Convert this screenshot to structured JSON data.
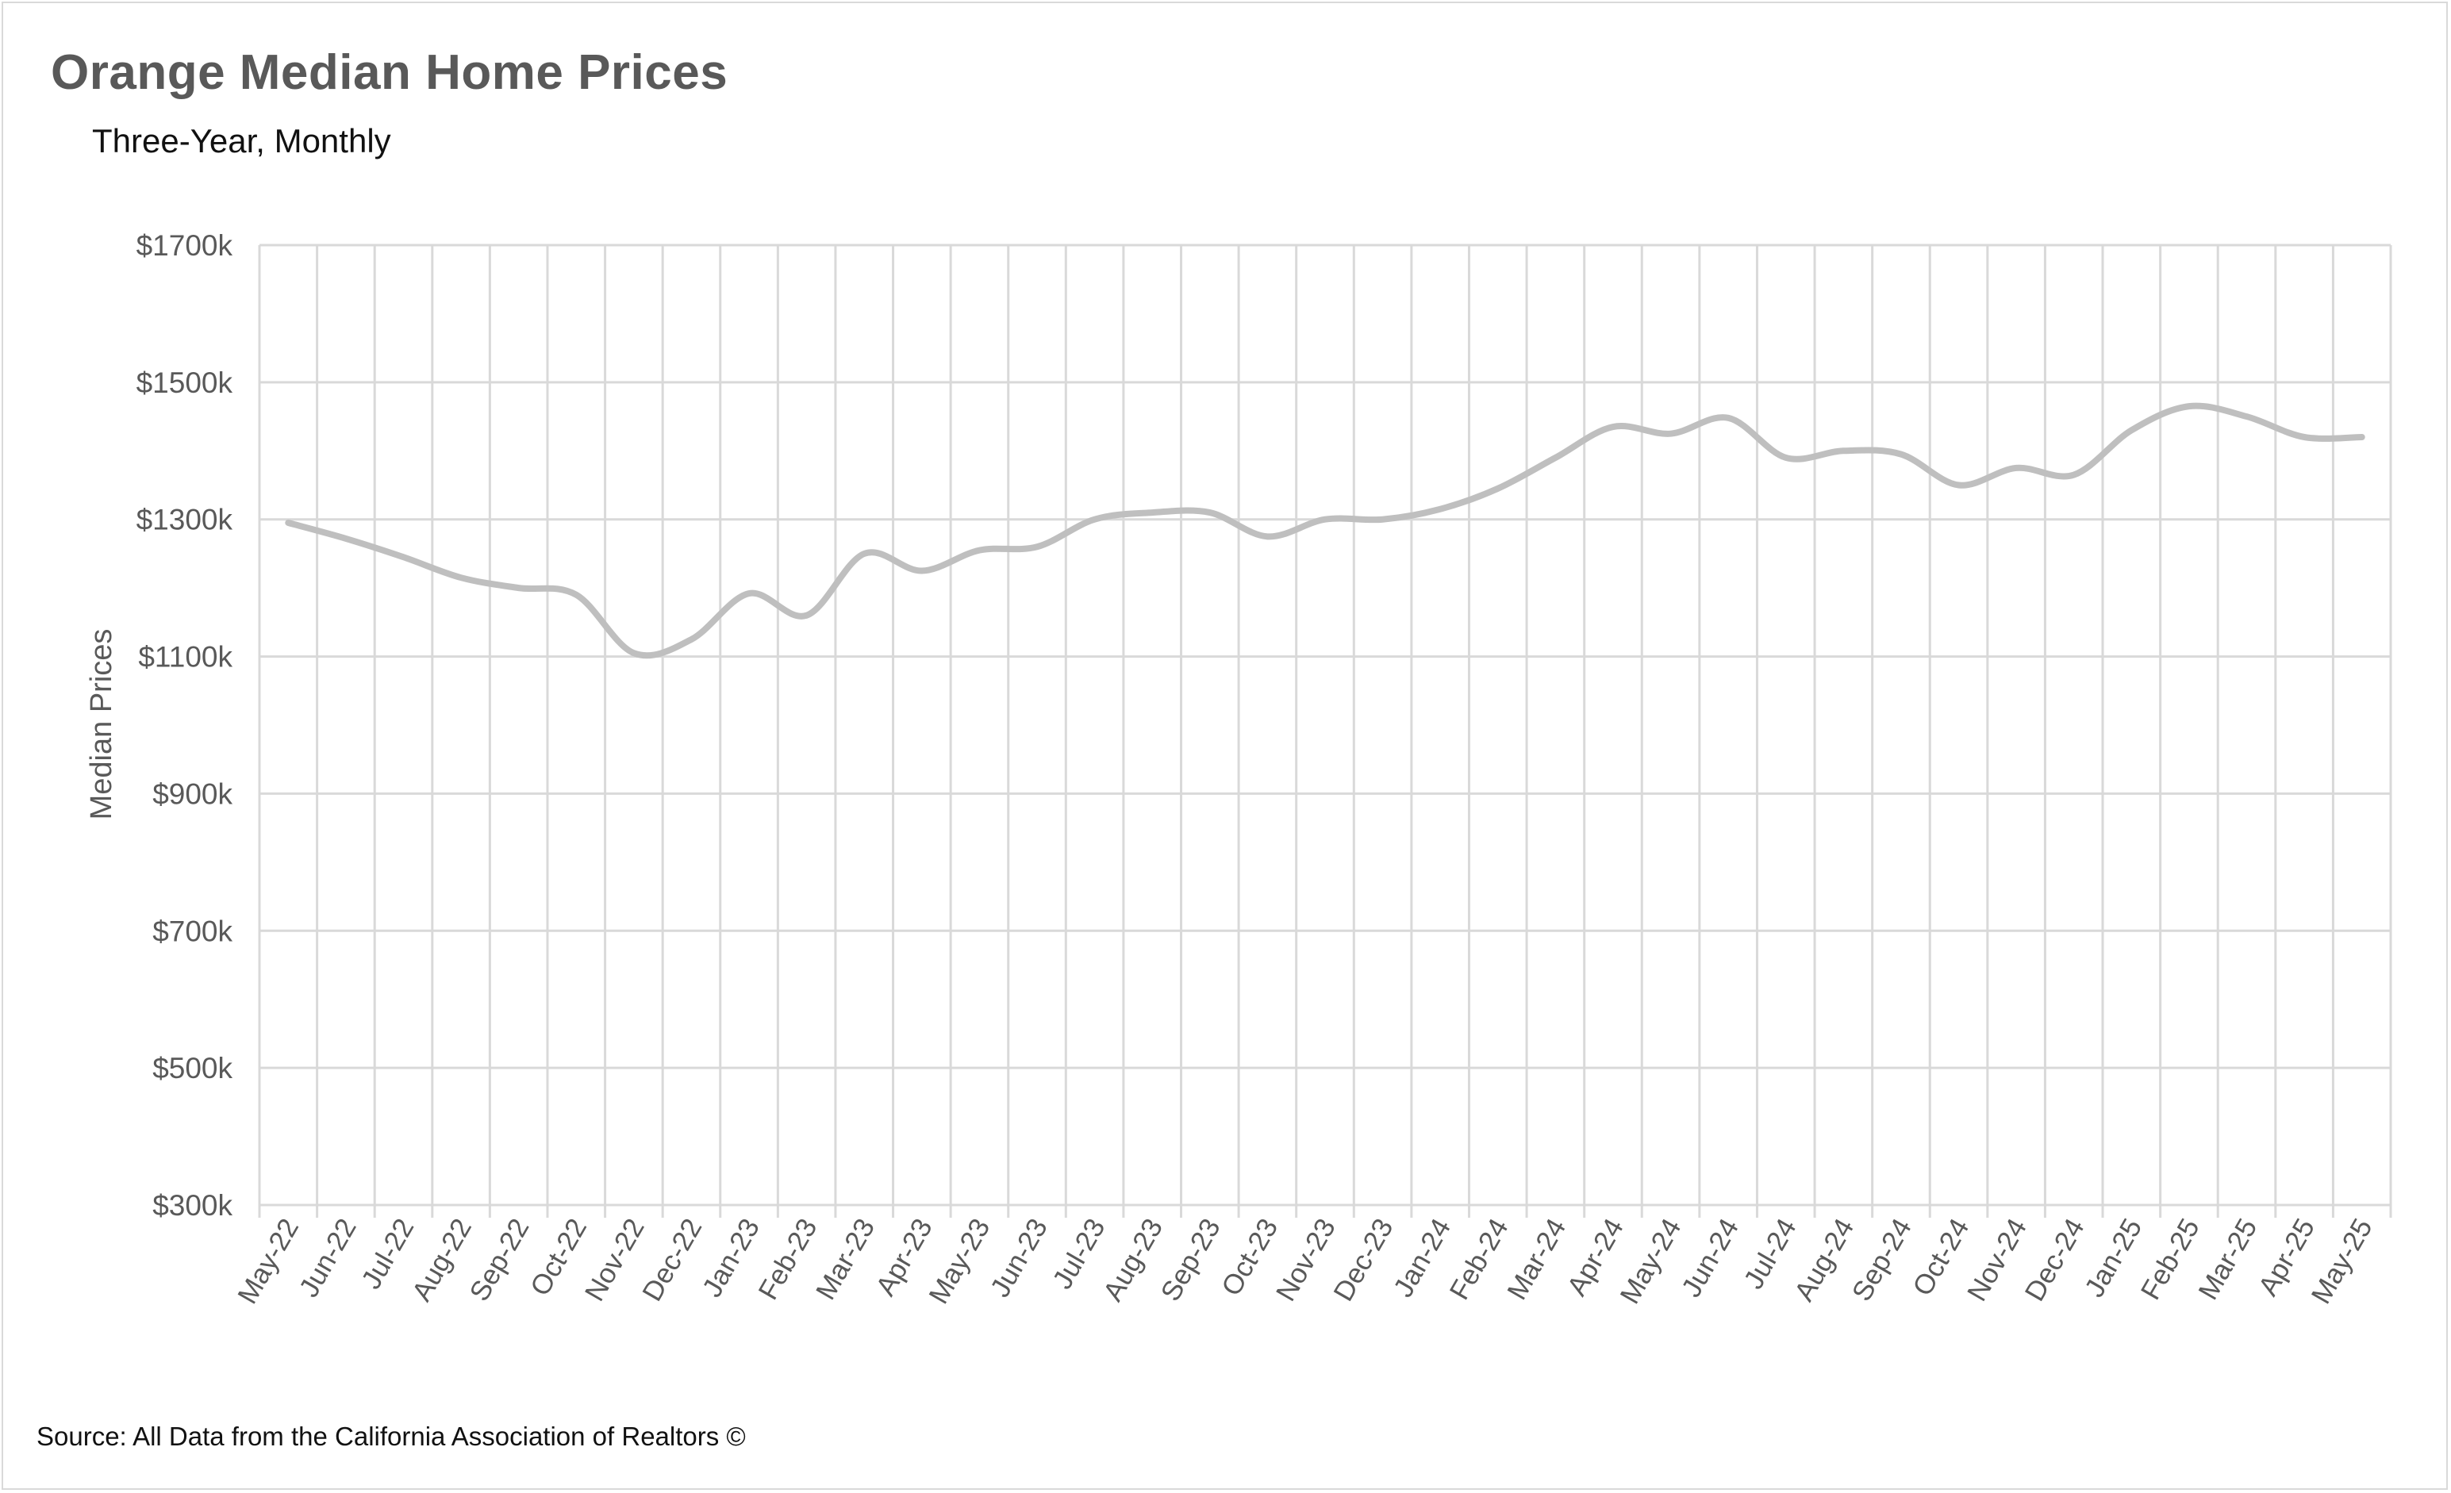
{
  "title": "Orange Median Home Prices",
  "subtitle": "Three-Year, Monthly",
  "footer": "Source: All Data from the California Association of Realtors ©",
  "colors": {
    "line": "#bfbfbf",
    "grid": "#d9d9d9",
    "text": "#595959"
  },
  "chart_data": {
    "type": "line",
    "title": "Orange Median Home Prices",
    "subtitle": "Three-Year, Monthly",
    "xlabel": "",
    "ylabel": "Median Prices",
    "ylim": [
      300,
      1700
    ],
    "y_ticks": [
      300,
      500,
      700,
      900,
      1100,
      1300,
      1500,
      1700
    ],
    "y_tick_labels": [
      "$300k",
      "$500k",
      "$700k",
      "$900k",
      "$1100k",
      "$1300k",
      "$1500k",
      "$1700k"
    ],
    "grid": true,
    "legend": "none",
    "categories": [
      "May-22",
      "Jun-22",
      "Jul-22",
      "Aug-22",
      "Sep-22",
      "Oct-22",
      "Nov-22",
      "Dec-22",
      "Jan-23",
      "Feb-23",
      "Mar-23",
      "Apr-23",
      "May-23",
      "Jun-23",
      "Jul-23",
      "Aug-23",
      "Sep-23",
      "Oct-23",
      "Nov-23",
      "Dec-23",
      "Jan-24",
      "Feb-24",
      "Mar-24",
      "Apr-24",
      "May-24",
      "Jun-24",
      "Jul-24",
      "Aug-24",
      "Sep-24",
      "Oct-24",
      "Nov-24",
      "Dec-24",
      "Jan-25",
      "Feb-25",
      "Mar-25",
      "Apr-25",
      "May-25"
    ],
    "series": [
      {
        "values": [
          1295,
          1272,
          1245,
          1215,
          1200,
          1190,
          1105,
          1125,
          1192,
          1160,
          1250,
          1225,
          1255,
          1260,
          1300,
          1310,
          1310,
          1275,
          1300,
          1300,
          1315,
          1345,
          1390,
          1435,
          1425,
          1448,
          1390,
          1400,
          1395,
          1350,
          1375,
          1365,
          1430,
          1465,
          1450,
          1420,
          1420
        ]
      }
    ]
  }
}
